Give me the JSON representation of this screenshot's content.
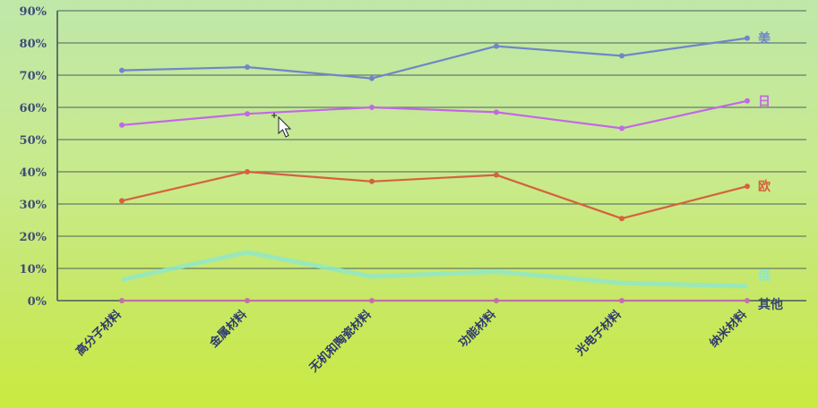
{
  "chart_data": {
    "type": "line",
    "categories": [
      "高分子材料",
      "金属材料",
      "无机和陶瓷材料",
      "功能材料",
      "光电子材料",
      "纳米材料"
    ],
    "series": [
      {
        "name": "美",
        "values": [
          71.5,
          72.5,
          69,
          79,
          76,
          81.5
        ],
        "color": "#6f86c8"
      },
      {
        "name": "日",
        "values": [
          54.5,
          58,
          60,
          58.5,
          53.5,
          62
        ],
        "color": "#c466e8"
      },
      {
        "name": "欧",
        "values": [
          31,
          40,
          37,
          39,
          25.5,
          35.5
        ],
        "color": "#d5613f"
      },
      {
        "name": "俄",
        "values": [
          6.5,
          15,
          7.5,
          9,
          5.5,
          4.5
        ],
        "color": "#8fe8c8"
      },
      {
        "name": "其他",
        "values": [
          0,
          0,
          0,
          0,
          0,
          0
        ],
        "color": "#c070a8"
      }
    ],
    "yticks": [
      "0%",
      "10%",
      "20%",
      "30%",
      "40%",
      "50%",
      "60%",
      "70%",
      "80%",
      "90%"
    ],
    "ylim": [
      0,
      90
    ],
    "grid": true,
    "legend": "inline-right"
  }
}
